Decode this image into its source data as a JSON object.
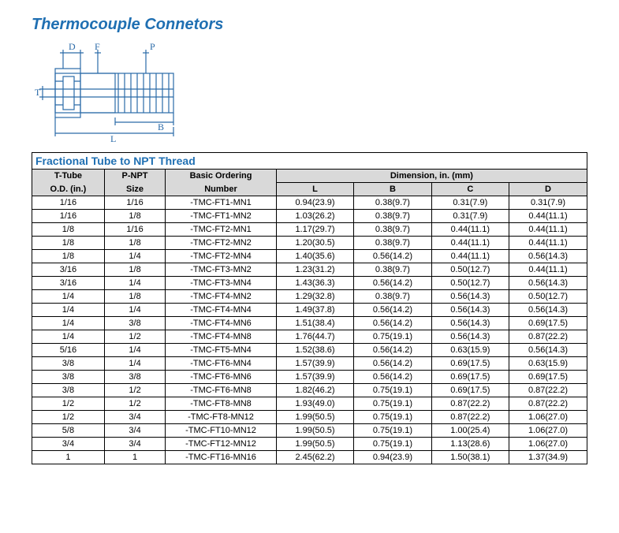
{
  "title": "Thermocouple Connetors",
  "subtitle": "Fractional Tube to NPT Thread",
  "diagram": {
    "labels": {
      "D": "D",
      "F": "F",
      "P": "P",
      "T": "T",
      "B": "B",
      "L": "L"
    },
    "stroke": "#2a6aa8",
    "text_color": "#2a6aa8"
  },
  "table": {
    "headers": {
      "tTube1": "T-Tube",
      "tTube2": "O.D. (in.)",
      "pnpt1": "P-NPT",
      "pnpt2": "Size",
      "basic1": "Basic Ordering",
      "basic2": "Number",
      "dimGroup": "Dimension, in. (mm)",
      "L": "L",
      "B": "B",
      "C": "C",
      "D": "D"
    },
    "col_widths": [
      "13%",
      "11%",
      "20%",
      "14%",
      "14%",
      "14%",
      "14%"
    ],
    "rows": [
      {
        "tt": "1/16",
        "pn": "1/16",
        "num": "-TMC-FT1-MN1",
        "L": "0.94(23.9)",
        "B": "0.38(9.7)",
        "C": "0.31(7.9)",
        "D": "0.31(7.9)"
      },
      {
        "tt": "1/16",
        "pn": "1/8",
        "num": "-TMC-FT1-MN2",
        "L": "1.03(26.2)",
        "B": "0.38(9.7)",
        "C": "0.31(7.9)",
        "D": "0.44(11.1)"
      },
      {
        "tt": "1/8",
        "pn": "1/16",
        "num": "-TMC-FT2-MN1",
        "L": "1.17(29.7)",
        "B": "0.38(9.7)",
        "C": "0.44(11.1)",
        "D": "0.44(11.1)"
      },
      {
        "tt": "1/8",
        "pn": "1/8",
        "num": "-TMC-FT2-MN2",
        "L": "1.20(30.5)",
        "B": "0.38(9.7)",
        "C": "0.44(11.1)",
        "D": "0.44(11.1)"
      },
      {
        "tt": "1/8",
        "pn": "1/4",
        "num": "-TMC-FT2-MN4",
        "L": "1.40(35.6)",
        "B": "0.56(14.2)",
        "C": "0.44(11.1)",
        "D": "0.56(14.3)"
      },
      {
        "tt": "3/16",
        "pn": "1/8",
        "num": "-TMC-FT3-MN2",
        "L": "1.23(31.2)",
        "B": "0.38(9.7)",
        "C": "0.50(12.7)",
        "D": "0.44(11.1)"
      },
      {
        "tt": "3/16",
        "pn": "1/4",
        "num": "-TMC-FT3-MN4",
        "L": "1.43(36.3)",
        "B": "0.56(14.2)",
        "C": "0.50(12.7)",
        "D": "0.56(14.3)"
      },
      {
        "tt": "1/4",
        "pn": "1/8",
        "num": "-TMC-FT4-MN2",
        "L": "1.29(32.8)",
        "B": "0.38(9.7)",
        "C": "0.56(14.3)",
        "D": "0.50(12.7)"
      },
      {
        "tt": "1/4",
        "pn": "1/4",
        "num": "-TMC-FT4-MN4",
        "L": "1.49(37.8)",
        "B": "0.56(14.2)",
        "C": "0.56(14.3)",
        "D": "0.56(14.3)"
      },
      {
        "tt": "1/4",
        "pn": "3/8",
        "num": "-TMC-FT4-MN6",
        "L": "1.51(38.4)",
        "B": "0.56(14.2)",
        "C": "0.56(14.3)",
        "D": "0.69(17.5)"
      },
      {
        "tt": "1/4",
        "pn": "1/2",
        "num": "-TMC-FT4-MN8",
        "L": "1.76(44.7)",
        "B": "0.75(19.1)",
        "C": "0.56(14.3)",
        "D": "0.87(22.2)"
      },
      {
        "tt": "5/16",
        "pn": "1/4",
        "num": "-TMC-FT5-MN4",
        "L": "1.52(38.6)",
        "B": "0.56(14.2)",
        "C": "0.63(15.9)",
        "D": "0.56(14.3)"
      },
      {
        "tt": "3/8",
        "pn": "1/4",
        "num": "-TMC-FT6-MN4",
        "L": "1.57(39.9)",
        "B": "0.56(14.2)",
        "C": "0.69(17.5)",
        "D": "0.63(15.9)"
      },
      {
        "tt": "3/8",
        "pn": "3/8",
        "num": "-TMC-FT6-MN6",
        "L": "1.57(39.9)",
        "B": "0.56(14.2)",
        "C": "0.69(17.5)",
        "D": "0.69(17.5)"
      },
      {
        "tt": "3/8",
        "pn": "1/2",
        "num": "-TMC-FT6-MN8",
        "L": "1.82(46.2)",
        "B": "0.75(19.1)",
        "C": "0.69(17.5)",
        "D": "0.87(22.2)"
      },
      {
        "tt": "1/2",
        "pn": "1/2",
        "num": "-TMC-FT8-MN8",
        "L": "1.93(49.0)",
        "B": "0.75(19.1)",
        "C": "0.87(22.2)",
        "D": "0.87(22.2)"
      },
      {
        "tt": "1/2",
        "pn": "3/4",
        "num": "-TMC-FT8-MN12",
        "L": "1.99(50.5)",
        "B": "0.75(19.1)",
        "C": "0.87(22.2)",
        "D": "1.06(27.0)"
      },
      {
        "tt": "5/8",
        "pn": "3/4",
        "num": "-TMC-FT10-MN12",
        "L": "1.99(50.5)",
        "B": "0.75(19.1)",
        "C": "1.00(25.4)",
        "D": "1.06(27.0)"
      },
      {
        "tt": "3/4",
        "pn": "3/4",
        "num": "-TMC-FT12-MN12",
        "L": "1.99(50.5)",
        "B": "0.75(19.1)",
        "C": "1.13(28.6)",
        "D": "1.06(27.0)"
      },
      {
        "tt": "1",
        "pn": "1",
        "num": "-TMC-FT16-MN16",
        "L": "2.45(62.2)",
        "B": "0.94(23.9)",
        "C": "1.50(38.1)",
        "D": "1.37(34.9)"
      }
    ]
  }
}
